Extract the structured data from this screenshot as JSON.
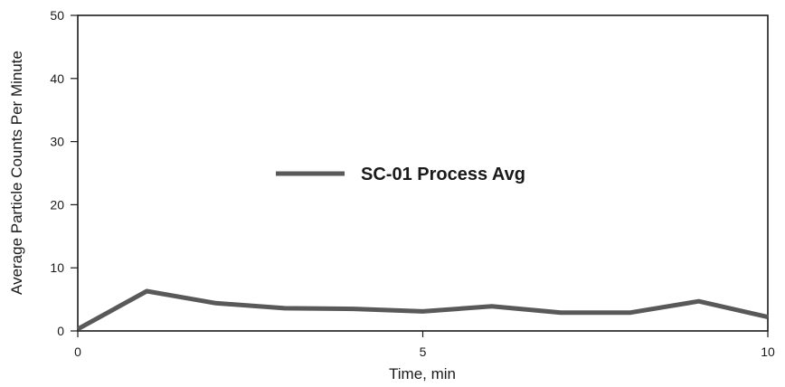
{
  "chart_data": {
    "type": "line",
    "title": "",
    "xlabel": "Time, min",
    "ylabel": "Average Particle Counts Per Minute",
    "xlim": [
      0,
      10
    ],
    "ylim": [
      0,
      50
    ],
    "x_ticks": [
      0,
      5,
      10
    ],
    "x_tick_labels": [
      "0",
      "5",
      "10"
    ],
    "y_ticks": [
      0,
      10,
      20,
      30,
      40,
      50
    ],
    "y_tick_labels": [
      "0",
      "10",
      "20",
      "30",
      "40",
      "50"
    ],
    "grid": false,
    "legend_position": "center",
    "series": [
      {
        "name": "SC-01 Process Avg",
        "color": "#595959",
        "x": [
          0,
          1,
          2,
          3,
          4,
          5,
          6,
          7,
          8,
          9,
          10
        ],
        "y": [
          0.3,
          6.3,
          4.4,
          3.6,
          3.5,
          3.1,
          3.9,
          2.9,
          2.9,
          4.7,
          2.2
        ]
      }
    ]
  }
}
